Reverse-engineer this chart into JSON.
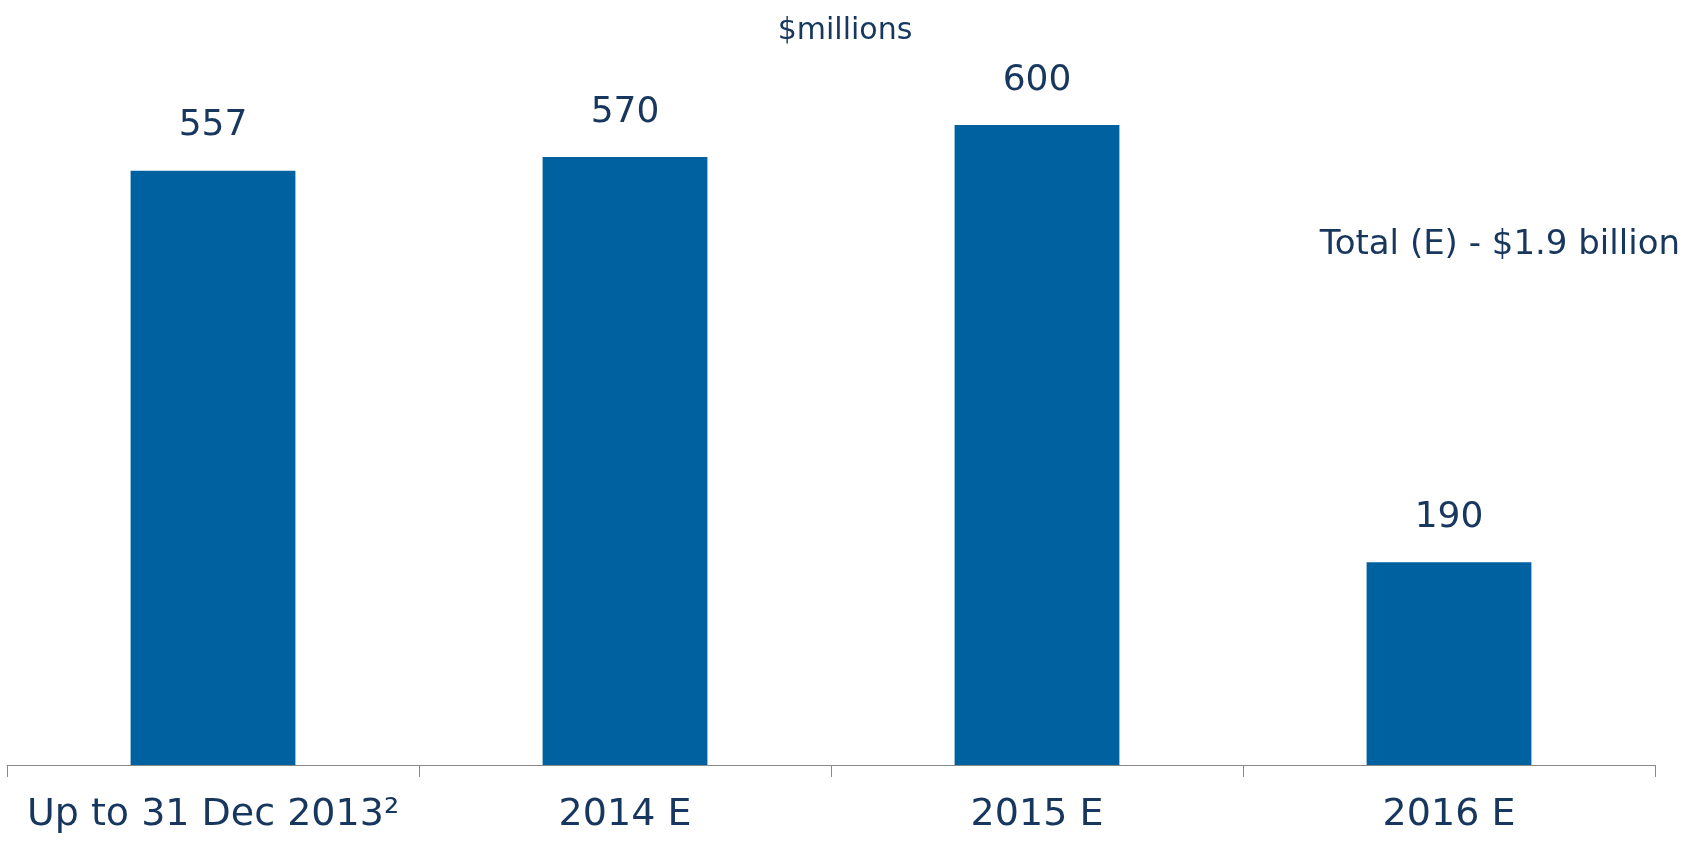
{
  "chart_data": {
    "type": "bar",
    "title": "$millions",
    "categories": [
      "Up to 31 Dec 2013²",
      "2014 E",
      "2015 E",
      "2016 E"
    ],
    "values": [
      557,
      570,
      600,
      190
    ],
    "color": "#0061a1",
    "data_labels": true,
    "annotations": [
      "Total (E) - $1.9 billion"
    ]
  }
}
